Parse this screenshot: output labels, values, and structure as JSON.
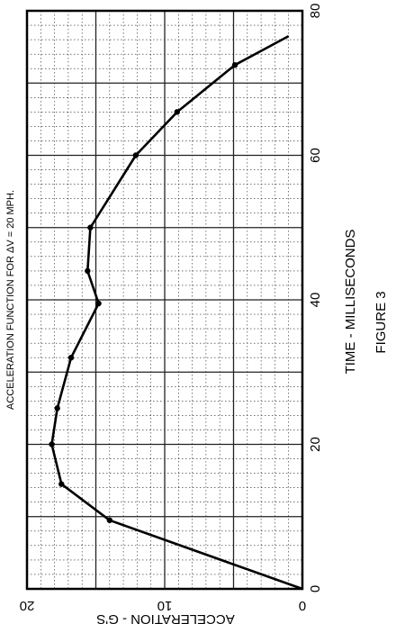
{
  "figure_label": "FIGURE 3",
  "chart_data": {
    "type": "line",
    "title": "ACCELERATION FUNCTION FOR ΔV = 20 MPH.",
    "xlabel": "TIME - MILLISECONDS",
    "ylabel": "ACCELERATION - G'S",
    "xlim": [
      0,
      80
    ],
    "ylim": [
      0,
      20
    ],
    "x_ticks": [
      0,
      20,
      40,
      60,
      80
    ],
    "y_ticks": [
      0,
      10,
      20
    ],
    "grid": true,
    "series": [
      {
        "x": [
          0,
          9.5,
          14.5,
          20,
          25,
          32,
          39.5,
          44,
          50,
          60,
          66,
          72.5,
          76.5
        ],
        "y": [
          0,
          14,
          17.5,
          18.2,
          17.8,
          16.8,
          14.8,
          15.6,
          15.4,
          12.1,
          9.1,
          4.9,
          1.0
        ]
      }
    ]
  }
}
